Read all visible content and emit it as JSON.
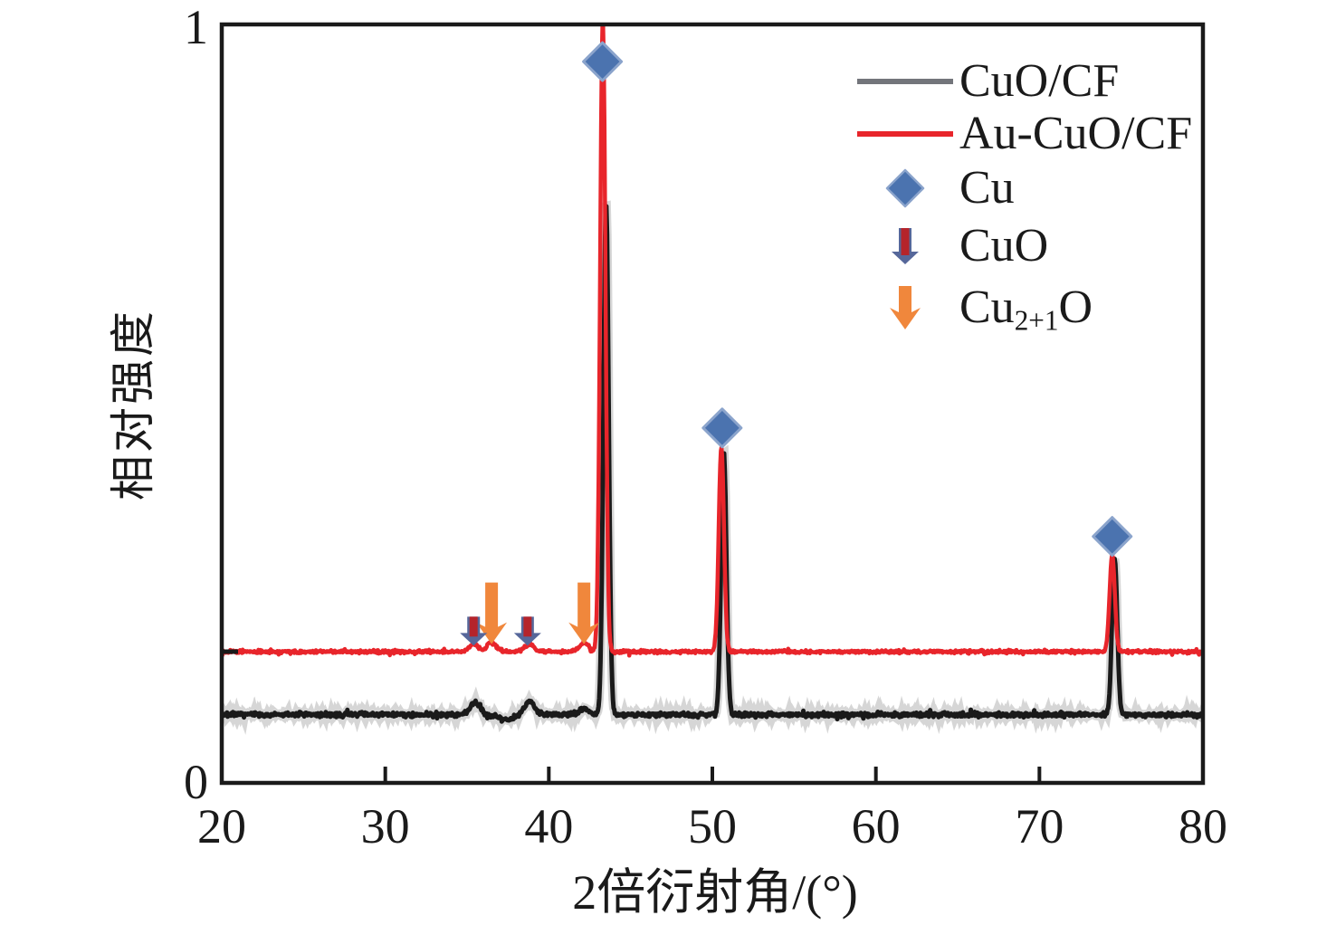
{
  "figure": {
    "background": "#ffffff",
    "axis_color": "#1a1a1a"
  },
  "legend": {
    "items": [
      {
        "label": "CuO/CF",
        "swatch": "line",
        "color": "#73757b"
      },
      {
        "label": "Au-CuO/CF",
        "swatch": "line",
        "color": "#e8252b"
      },
      {
        "label": "Cu",
        "swatch": "diamond",
        "color": "#4b73af"
      },
      {
        "label": "CuO",
        "swatch": "arrow-short",
        "color": "#56679a",
        "stripe_color": "#b5242b"
      },
      {
        "label": "Cu2+1O",
        "label_pre": "Cu",
        "label_sub": "2+1",
        "label_post": "O",
        "swatch": "arrow-long",
        "color": "#f0873c"
      }
    ]
  },
  "chart_data": {
    "type": "line",
    "title": "",
    "xlabel": "2倍衍射角/(°)",
    "ylabel": "相对强度",
    "xlim": [
      20,
      80
    ],
    "ylim": [
      0,
      1
    ],
    "grid": false,
    "legend_position": "upper-right-inside",
    "x_ticks": [
      20,
      30,
      40,
      50,
      60,
      70,
      80
    ],
    "x_inner_ticks": [
      30,
      40,
      50,
      60,
      70
    ],
    "y_tick_labels": [
      "0",
      "1"
    ],
    "series": [
      {
        "id": "cuo-cf",
        "name": "CuO/CF",
        "color": "#1a1a1a",
        "halo": "#8a8a8a",
        "stroke_width": 5,
        "baseline": 0.09,
        "noise": 0.0042,
        "seed": 7,
        "peaks": [
          {
            "x": 35.5,
            "h": 0.016,
            "w": 0.3
          },
          {
            "x": 37.4,
            "h": -0.006,
            "w": 0.5
          },
          {
            "x": 38.8,
            "h": 0.018,
            "w": 0.3
          },
          {
            "x": 42.2,
            "h": 0.008,
            "w": 0.3
          },
          {
            "x": 43.5,
            "h": 0.676,
            "w": 0.16
          },
          {
            "x": 50.7,
            "h": 0.346,
            "w": 0.16
          },
          {
            "x": 74.6,
            "h": 0.205,
            "w": 0.16
          }
        ]
      },
      {
        "id": "au-cuo-cf",
        "name": "Au-CuO/CF",
        "color": "#e8252b",
        "halo": null,
        "stroke_width": 4.5,
        "baseline": 0.173,
        "noise": 0.003,
        "seed": 13,
        "peaks": [
          {
            "x": 35.4,
            "h": 0.01,
            "w": 0.28
          },
          {
            "x": 36.5,
            "h": 0.012,
            "w": 0.28
          },
          {
            "x": 38.8,
            "h": 0.01,
            "w": 0.28
          },
          {
            "x": 42.15,
            "h": 0.012,
            "w": 0.28
          },
          {
            "x": 43.3,
            "h": 0.84,
            "w": 0.16
          },
          {
            "x": 50.55,
            "h": 0.27,
            "w": 0.16
          },
          {
            "x": 74.45,
            "h": 0.127,
            "w": 0.16
          }
        ]
      }
    ],
    "markers": {
      "cu_diamonds": {
        "phase": "Cu",
        "color": "#4b73af",
        "edge": "#8ba4cc",
        "size": 42,
        "points": [
          {
            "x": 43.28,
            "y": 0.951
          },
          {
            "x": 50.6,
            "y": 0.468
          },
          {
            "x": 74.45,
            "y": 0.325
          }
        ]
      },
      "cuo_arrows": {
        "phase": "CuO",
        "body": "#56679a",
        "stripe": "#b5242b",
        "tip_y": 0.181,
        "length": 32,
        "positions": [
          35.4,
          38.7
        ]
      },
      "cu2o_arrows": {
        "phase": "Cu2+1O",
        "color": "#f0873c",
        "tip_y": 0.183,
        "length": 68,
        "positions": [
          36.5,
          42.15
        ]
      }
    }
  }
}
